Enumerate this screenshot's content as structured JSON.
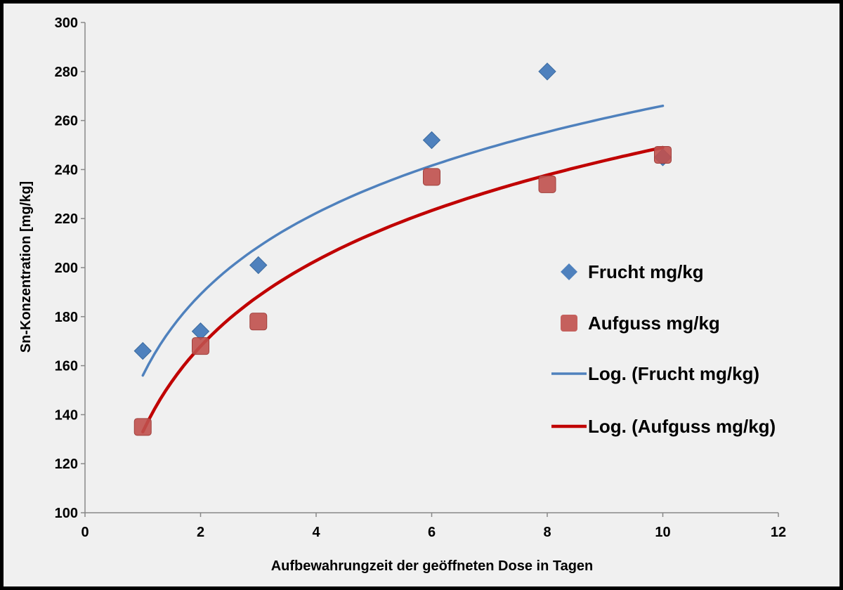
{
  "chart_data": {
    "type": "scatter",
    "xlabel": "Aufbewahrungzeit  der geöffneten Dose in Tagen",
    "ylabel": "Sn-Konzentration [mg/kg]",
    "xlim": [
      0,
      12
    ],
    "ylim": [
      100,
      300
    ],
    "x_ticks": [
      0,
      2,
      4,
      6,
      8,
      10,
      12
    ],
    "y_ticks": [
      100,
      120,
      140,
      160,
      180,
      200,
      220,
      240,
      260,
      280,
      300
    ],
    "grid": false,
    "legend_position": "right",
    "series": [
      {
        "name": "Frucht mg/kg",
        "kind": "points",
        "marker": "diamond",
        "color": "#4f81bd",
        "x": [
          1,
          2,
          3,
          6,
          8,
          10
        ],
        "y": [
          166,
          174,
          201,
          252,
          280,
          245
        ]
      },
      {
        "name": "Aufguss mg/kg",
        "kind": "points",
        "marker": "square",
        "color": "#c0504d",
        "x": [
          1,
          2,
          3,
          6,
          8,
          10
        ],
        "y": [
          135,
          168,
          178,
          237,
          234,
          246
        ]
      },
      {
        "name": "Log. (Frucht mg/kg)",
        "kind": "trendline",
        "fit": "logarithmic",
        "color": "#4f81bd",
        "x_range": [
          1,
          10
        ],
        "y_at_start": 156,
        "y_at_end": 266
      },
      {
        "name": "Log. (Aufguss mg/kg)",
        "kind": "trendline",
        "fit": "logarithmic",
        "color": "#c00000",
        "x_range": [
          1,
          10
        ],
        "y_at_start": 133,
        "y_at_end": 249
      }
    ]
  }
}
